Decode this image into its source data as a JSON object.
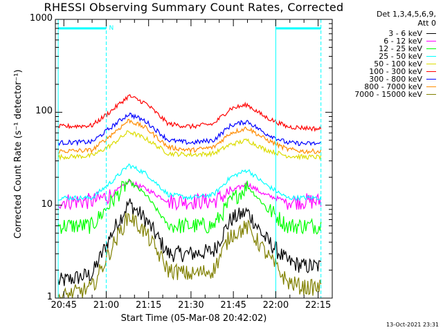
{
  "title": "RHESSI Observing Summary Count Rates, Corrected",
  "legend_header": [
    "Det 1,3,4,5,6,9,",
    "Att 0"
  ],
  "footer": "13-Oct-2021 23:31",
  "chart_data": {
    "type": "line",
    "title": "RHESSI Observing Summary Count Rates, Corrected",
    "xlabel": "Start Time (05-Mar-08 20:42:02)",
    "ylabel": "Corrected Count Rate (s⁻¹ detector⁻¹)",
    "yscale": "log",
    "ylim": [
      1,
      1000
    ],
    "xlim": [
      "20:42",
      "22:20"
    ],
    "x_tick_labels": [
      "20:45",
      "21:00",
      "21:15",
      "21:30",
      "21:45",
      "22:00",
      "22:15"
    ],
    "y_tick_labels": [
      "1",
      "10",
      "100",
      "1000"
    ],
    "grid": false,
    "legend_position": "right",
    "x": [
      "20:43",
      "20:55",
      "21:02",
      "21:08",
      "21:14",
      "21:22",
      "21:30",
      "21:38",
      "21:44",
      "21:50",
      "21:56",
      "22:04",
      "22:10",
      "22:16"
    ],
    "series": [
      {
        "name": "3 - 6 keV",
        "color": "#000000",
        "values": [
          1.5,
          1.8,
          5.0,
          10.5,
          7.0,
          3.0,
          3.0,
          3.2,
          7.0,
          8.5,
          4.5,
          2.5,
          2.2,
          2.2
        ]
      },
      {
        "name": "6 - 12 keV",
        "color": "#ff00ff",
        "values": [
          11,
          11,
          13,
          18,
          15,
          11,
          11,
          11,
          14,
          17,
          13,
          11,
          11,
          11
        ]
      },
      {
        "name": "12 - 25 keV",
        "color": "#00ff00",
        "values": [
          6,
          6,
          11,
          18,
          13,
          6,
          6,
          6,
          11,
          16,
          10,
          6,
          6,
          6
        ]
      },
      {
        "name": "25 - 50 keV",
        "color": "#00ffff",
        "values": [
          12,
          12,
          18,
          27,
          22,
          13,
          12,
          13,
          20,
          24,
          17,
          12,
          12,
          12
        ]
      },
      {
        "name": "50 - 100 keV",
        "color": "#dcdc00",
        "values": [
          33,
          34,
          45,
          62,
          52,
          36,
          35,
          36,
          45,
          50,
          40,
          34,
          33,
          33
        ]
      },
      {
        "name": "100 - 300 keV",
        "color": "#ff0000",
        "values": [
          70,
          72,
          105,
          150,
          125,
          75,
          70,
          75,
          110,
          120,
          90,
          70,
          68,
          66
        ]
      },
      {
        "name": "300 - 800 keV",
        "color": "#0000ff",
        "values": [
          47,
          48,
          70,
          96,
          80,
          50,
          47,
          50,
          72,
          80,
          60,
          47,
          46,
          46
        ]
      },
      {
        "name": "800 - 7000 keV",
        "color": "#ff8c00",
        "values": [
          38,
          39,
          58,
          82,
          68,
          42,
          39,
          42,
          60,
          68,
          52,
          40,
          38,
          38
        ]
      },
      {
        "name": "7000 - 15000 keV",
        "color": "#808000",
        "values": [
          1.0,
          1.3,
          3.5,
          7.8,
          5.0,
          2.0,
          1.8,
          2.0,
          4.8,
          5.8,
          3.2,
          1.5,
          1.3,
          1.3
        ]
      }
    ],
    "markers": {
      "dashed_vertical_lines": [
        "21:00",
        "22:16"
      ],
      "solid_vertical_lines": [
        "20:43",
        "22:00"
      ],
      "flag_bars": [
        {
          "from": "20:43",
          "to": "21:00",
          "label": "N"
        },
        {
          "from": "22:00",
          "to": "22:16",
          "label": ""
        }
      ],
      "color": "#00ffff"
    }
  }
}
